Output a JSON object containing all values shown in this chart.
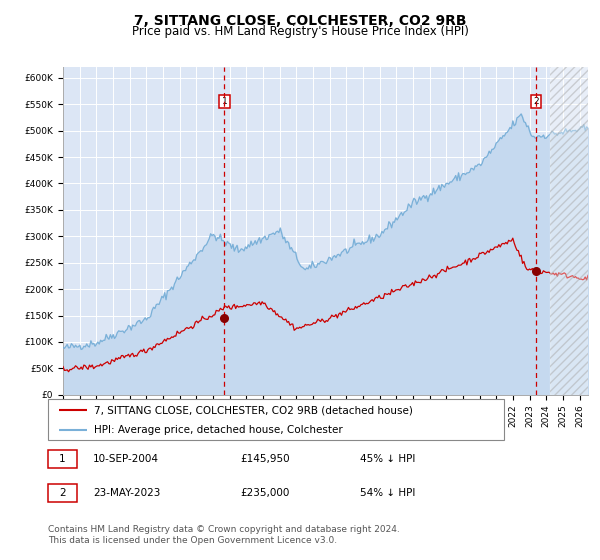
{
  "title": "7, SITTANG CLOSE, COLCHESTER, CO2 9RB",
  "subtitle": "Price paid vs. HM Land Registry's House Price Index (HPI)",
  "ylim": [
    0,
    620000
  ],
  "yticks": [
    0,
    50000,
    100000,
    150000,
    200000,
    250000,
    300000,
    350000,
    400000,
    450000,
    500000,
    550000,
    600000
  ],
  "ytick_labels": [
    "£0",
    "£50K",
    "£100K",
    "£150K",
    "£200K",
    "£250K",
    "£300K",
    "£350K",
    "£400K",
    "£450K",
    "£500K",
    "£550K",
    "£600K"
  ],
  "xlim_start": 1995.0,
  "xlim_end": 2026.5,
  "plot_bg_color": "#dce6f5",
  "hpi_color": "#7ab0d8",
  "hpi_fill_color": "#c5d9ef",
  "price_color": "#cc0000",
  "marker_color": "#880000",
  "marker1_x": 2004.69,
  "marker1_y": 145950,
  "marker2_x": 2023.39,
  "marker2_y": 235000,
  "vline_color": "#cc0000",
  "hatch_start": 2024.2,
  "legend_label1": "7, SITTANG CLOSE, COLCHESTER, CO2 9RB (detached house)",
  "legend_label2": "HPI: Average price, detached house, Colchester",
  "table_row1": [
    "1",
    "10-SEP-2004",
    "£145,950",
    "45% ↓ HPI"
  ],
  "table_row2": [
    "2",
    "23-MAY-2023",
    "£235,000",
    "54% ↓ HPI"
  ],
  "footnote": "Contains HM Land Registry data © Crown copyright and database right 2024.\nThis data is licensed under the Open Government Licence v3.0.",
  "title_fontsize": 10,
  "subtitle_fontsize": 8.5,
  "axis_fontsize": 6.5,
  "legend_fontsize": 7.5,
  "table_fontsize": 7.5,
  "footnote_fontsize": 6.5
}
